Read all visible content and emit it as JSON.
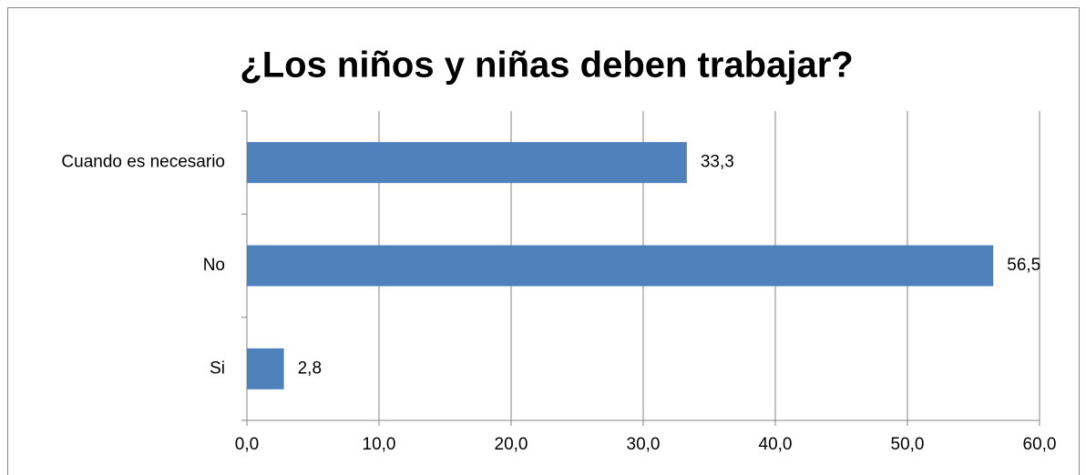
{
  "chart_data": {
    "type": "hbar",
    "title": "¿Los niños y niñas deben trabajar?",
    "categories": [
      "Cuando es necesario",
      "No",
      "Si"
    ],
    "values": [
      33.3,
      56.5,
      2.8
    ],
    "value_labels": [
      "33,3",
      "56,5",
      "2,8"
    ],
    "color": "#4f81bd",
    "xlim": [
      0,
      60
    ],
    "xticks": [
      {
        "value": 0,
        "label": "0,0"
      },
      {
        "value": 10,
        "label": "10,0"
      },
      {
        "value": 20,
        "label": "20,0"
      },
      {
        "value": 30,
        "label": "30,0"
      },
      {
        "value": 40,
        "label": "40,0"
      },
      {
        "value": 50,
        "label": "50,0"
      },
      {
        "value": 60,
        "label": "60,0"
      }
    ],
    "grid": true
  }
}
